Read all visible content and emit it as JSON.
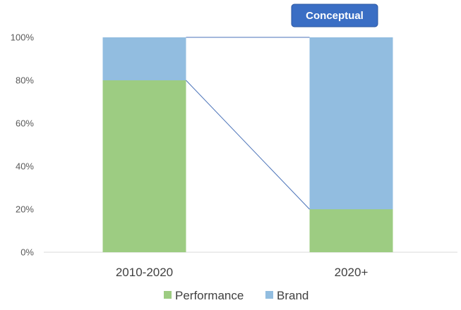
{
  "badge": {
    "label": "Conceptual",
    "color": "#3a6ec4"
  },
  "chart_data": {
    "type": "bar",
    "stacked": true,
    "categories": [
      "2010-2020",
      "2020+"
    ],
    "series": [
      {
        "name": "Performance",
        "values": [
          80,
          20
        ],
        "color": "#9dcc82"
      },
      {
        "name": "Brand",
        "values": [
          20,
          80
        ],
        "color": "#92bde0"
      }
    ],
    "ylim": [
      0,
      100
    ],
    "yticks": [
      "0%",
      "20%",
      "40%",
      "60%",
      "80%",
      "100%"
    ],
    "series_lines": true,
    "series_line_color": "#4a72b8",
    "grid": false,
    "legend_position": "bottom"
  }
}
